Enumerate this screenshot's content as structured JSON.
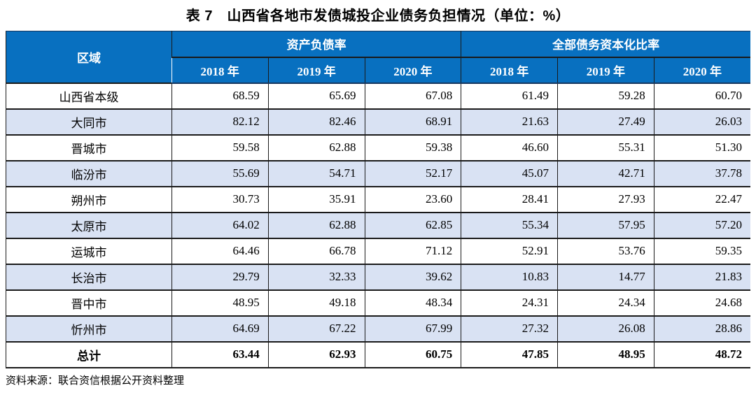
{
  "title": "表 7　山西省各地市发债城投企业债务负担情况（单位：%）",
  "table": {
    "region_header": "区域",
    "group_headers": [
      "资产负债率",
      "全部债务资本化比率"
    ],
    "year_headers": [
      "2018 年",
      "2019 年",
      "2020 年",
      "2018 年",
      "2019 年",
      "2020 年"
    ],
    "rows": [
      {
        "region": "山西省本级",
        "values": [
          "68.59",
          "65.69",
          "67.08",
          "61.49",
          "59.28",
          "60.70"
        ]
      },
      {
        "region": "大同市",
        "values": [
          "82.12",
          "82.46",
          "68.91",
          "21.63",
          "27.49",
          "26.03"
        ]
      },
      {
        "region": "晋城市",
        "values": [
          "59.58",
          "62.88",
          "59.38",
          "46.60",
          "55.31",
          "51.30"
        ]
      },
      {
        "region": "临汾市",
        "values": [
          "55.69",
          "54.71",
          "52.17",
          "45.07",
          "42.71",
          "37.78"
        ]
      },
      {
        "region": "朔州市",
        "values": [
          "30.73",
          "35.91",
          "23.60",
          "28.41",
          "27.93",
          "22.47"
        ]
      },
      {
        "region": "太原市",
        "values": [
          "64.02",
          "62.88",
          "62.85",
          "55.34",
          "57.95",
          "57.20"
        ]
      },
      {
        "region": "运城市",
        "values": [
          "64.46",
          "66.78",
          "71.12",
          "52.91",
          "53.76",
          "59.35"
        ]
      },
      {
        "region": "长治市",
        "values": [
          "29.79",
          "32.33",
          "39.62",
          "10.83",
          "14.77",
          "21.83"
        ]
      },
      {
        "region": "晋中市",
        "values": [
          "48.95",
          "49.18",
          "48.34",
          "24.31",
          "24.34",
          "24.68"
        ]
      },
      {
        "region": "忻州市",
        "values": [
          "64.69",
          "67.22",
          "67.99",
          "27.32",
          "26.08",
          "28.86"
        ]
      }
    ],
    "total_row": {
      "region": "总计",
      "values": [
        "63.44",
        "62.93",
        "60.75",
        "47.85",
        "48.95",
        "48.72"
      ]
    }
  },
  "footer": {
    "source": "资料来源：联合资信根据公开资料整理"
  },
  "colors": {
    "header_bg": "#0870C0",
    "header_text": "#FFFFFF",
    "band_bg": "#D9E2F3",
    "border": "#1A1A1A"
  }
}
